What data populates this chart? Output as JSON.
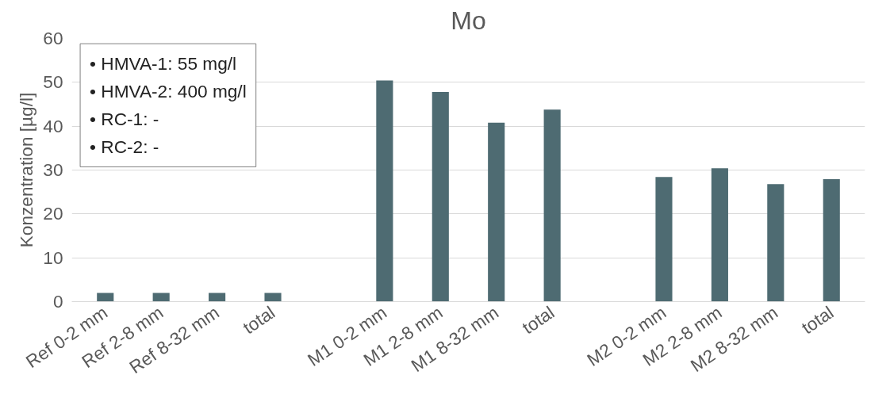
{
  "chart_data": {
    "type": "bar",
    "title": "Mo",
    "ylabel": "Konzentration [µg/l]",
    "categories": [
      "Ref 0-2 mm",
      "Ref 2-8 mm",
      "Ref 8-32 mm",
      "total",
      null,
      "M1 0-2 mm",
      "M1 2-8 mm",
      "M1 8-32 mm",
      "total",
      null,
      "M2 0-2 mm",
      "M2 2-8 mm",
      "M2 8-32 mm",
      "total"
    ],
    "values": [
      2,
      2,
      2,
      2,
      null,
      50.4,
      47.8,
      40.8,
      43.8,
      null,
      28.4,
      30.4,
      26.8,
      27.9
    ],
    "color": "#4e6b72",
    "ylim": [
      0,
      60
    ],
    "yticks": [
      0,
      10,
      20,
      30,
      40,
      50,
      60
    ],
    "grid": "y",
    "annotations": [
      "• HMVA-1: 55 mg/l",
      "• HMVA-2: 400 mg/l",
      "• RC-1:      -",
      "• RC-2:      -"
    ]
  }
}
